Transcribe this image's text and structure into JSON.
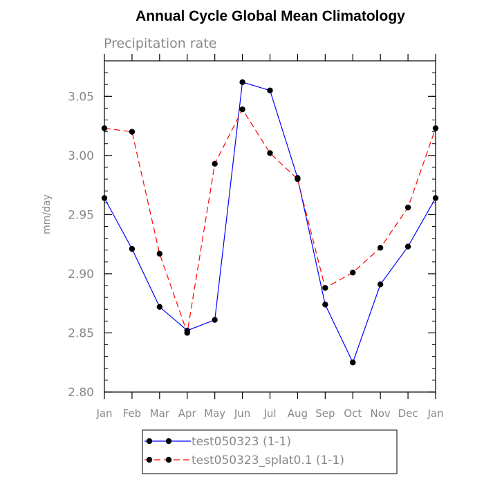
{
  "chart_data": {
    "type": "line",
    "title": "Annual Cycle Global Mean Climatology",
    "subtitle": "Precipitation rate",
    "xlabel": "",
    "ylabel": "mm/day",
    "categories": [
      "Jan",
      "Feb",
      "Mar",
      "Apr",
      "May",
      "Jun",
      "Jul",
      "Aug",
      "Sep",
      "Oct",
      "Nov",
      "Dec",
      "Jan"
    ],
    "ylim": [
      2.8,
      3.08
    ],
    "yticks": [
      "2.80",
      "2.85",
      "2.90",
      "2.95",
      "3.00",
      "3.05"
    ],
    "grid": false,
    "legend_position": "bottom",
    "series": [
      {
        "name": "test050323 (1-1)",
        "color": "#0000ff",
        "dash": "solid",
        "values": [
          2.964,
          2.921,
          2.872,
          2.852,
          2.861,
          3.062,
          3.055,
          2.981,
          2.874,
          2.825,
          2.891,
          2.923,
          2.964
        ]
      },
      {
        "name": "test050323_splat0.1 (1-1)",
        "color": "#ff0000",
        "dash": "dashed",
        "values": [
          3.023,
          3.02,
          2.917,
          2.85,
          2.993,
          3.039,
          3.002,
          2.98,
          2.888,
          2.901,
          2.922,
          2.956,
          3.023
        ]
      }
    ]
  }
}
